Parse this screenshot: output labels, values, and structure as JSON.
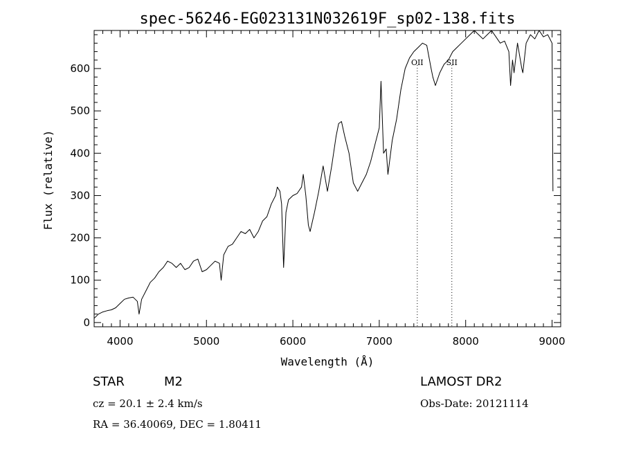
{
  "chart_data": {
    "type": "line",
    "title": "spec-56246-EG023131N032619F_sp02-138.fits",
    "xlabel": "Wavelength (Å)",
    "ylabel": "Flux (relative)",
    "xlim": [
      3700,
      9100
    ],
    "ylim": [
      -10,
      690
    ],
    "xticks": [
      4000,
      5000,
      6000,
      7000,
      8000,
      9000
    ],
    "yticks": [
      0,
      100,
      200,
      300,
      400,
      500,
      600
    ],
    "grid": false,
    "series": [
      {
        "x": [
          3700,
          3750,
          3800,
          3850,
          3900,
          3950,
          4000,
          4050,
          4100,
          4150,
          4200,
          4220,
          4250,
          4300,
          4350,
          4400,
          4450,
          4500,
          4550,
          4600,
          4650,
          4700,
          4750,
          4800,
          4850,
          4900,
          4950,
          5000,
          5050,
          5100,
          5150,
          5170,
          5200,
          5250,
          5300,
          5350,
          5400,
          5450,
          5500,
          5550,
          5600,
          5650,
          5700,
          5750,
          5800,
          5820,
          5850,
          5870,
          5893,
          5920,
          5950,
          6000,
          6050,
          6100,
          6120,
          6150,
          6180,
          6200,
          6250,
          6300,
          6350,
          6400,
          6450,
          6500,
          6530,
          6563,
          6600,
          6650,
          6700,
          6750,
          6800,
          6850,
          6900,
          6950,
          7000,
          7020,
          7050,
          7080,
          7100,
          7150,
          7200,
          7250,
          7300,
          7350,
          7400,
          7450,
          7500,
          7550,
          7600,
          7620,
          7650,
          7700,
          7750,
          7800,
          7850,
          7900,
          7950,
          8000,
          8050,
          8100,
          8150,
          8200,
          8250,
          8300,
          8350,
          8400,
          8450,
          8500,
          8520,
          8542,
          8560,
          8600,
          8650,
          8662,
          8700,
          8750,
          8800,
          8850,
          8900,
          8950,
          9000,
          9010
        ],
        "y": [
          10,
          20,
          25,
          28,
          30,
          35,
          45,
          55,
          58,
          60,
          50,
          20,
          55,
          75,
          95,
          105,
          120,
          130,
          145,
          140,
          130,
          140,
          125,
          130,
          145,
          150,
          120,
          125,
          135,
          145,
          140,
          100,
          160,
          180,
          185,
          200,
          215,
          210,
          220,
          200,
          215,
          240,
          250,
          280,
          300,
          320,
          310,
          280,
          130,
          260,
          290,
          300,
          305,
          320,
          350,
          300,
          230,
          215,
          260,
          310,
          370,
          310,
          370,
          440,
          470,
          475,
          440,
          400,
          330,
          310,
          330,
          350,
          380,
          420,
          460,
          570,
          400,
          410,
          350,
          430,
          480,
          550,
          600,
          625,
          640,
          650,
          660,
          655,
          600,
          580,
          560,
          590,
          610,
          620,
          640,
          650,
          660,
          670,
          680,
          690,
          680,
          670,
          680,
          690,
          675,
          660,
          665,
          640,
          560,
          620,
          590,
          660,
          600,
          590,
          660,
          680,
          670,
          690,
          675,
          680,
          660,
          310
        ]
      }
    ],
    "emission_lines": [
      {
        "label": "OII",
        "x": 7440
      },
      {
        "label": "SII",
        "x": 7840
      }
    ]
  },
  "footer": {
    "object_type": "STAR",
    "subclass": "M2",
    "survey": "LAMOST DR2",
    "cz": "cz = 20.1 ± 2.4 km/s",
    "obs_date": "Obs-Date: 20121114",
    "coords": "RA =  36.40069, DEC =   1.80411"
  }
}
